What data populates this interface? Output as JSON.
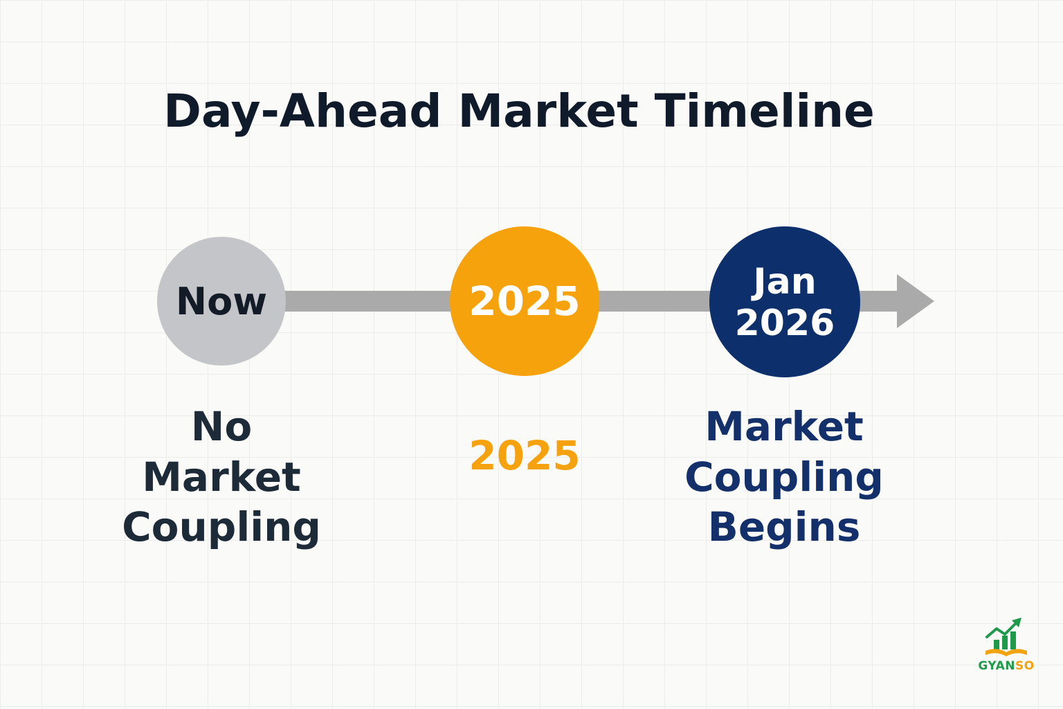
{
  "title": "Day-Ahead Market Timeline",
  "milestones": [
    {
      "circle_label": "Now",
      "caption_lines": [
        "No",
        "Market",
        "Coupling"
      ],
      "circle_color": "#c3c5c8",
      "text_color": "#1d2a38"
    },
    {
      "circle_label": "2025",
      "caption_lines": [
        "2025"
      ],
      "circle_color": "#f6a20c",
      "text_color": "#f5a20e"
    },
    {
      "circle_label_lines": [
        "Jan",
        "2026"
      ],
      "caption_lines": [
        "Market",
        "Coupling",
        "Begins"
      ],
      "circle_color": "#0d2f6c",
      "text_color": "#14306a"
    }
  ],
  "timeline": {
    "line_color": "#a9aaa9",
    "arrow_icon": "arrow-right-icon"
  },
  "logo": {
    "text_main": "GYAN",
    "text_accent": "SO",
    "icon": "growth-chart-book-icon",
    "colors": {
      "green": "#1f9a4b",
      "orange": "#f2a30e"
    }
  }
}
